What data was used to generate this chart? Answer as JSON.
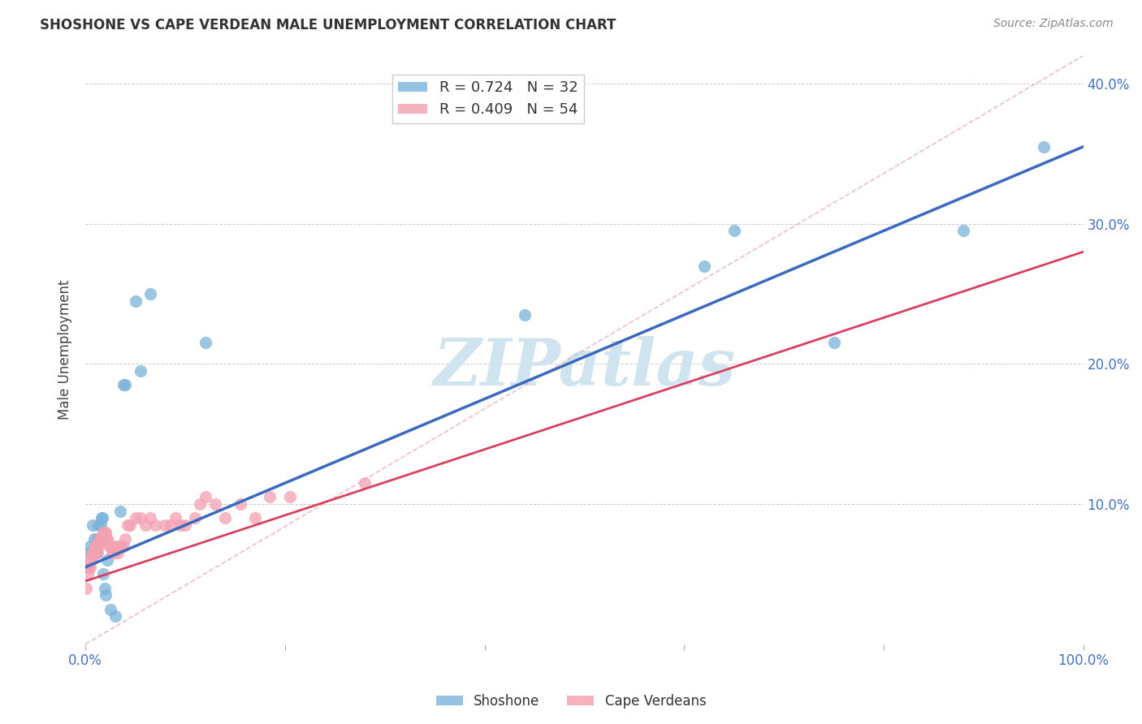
{
  "title": "SHOSHONE VS CAPE VERDEAN MALE UNEMPLOYMENT CORRELATION CHART",
  "source": "Source: ZipAtlas.com",
  "ylabel": "Male Unemployment",
  "xlabel": "",
  "xlim": [
    0,
    1.0
  ],
  "ylim": [
    0,
    0.42
  ],
  "x_ticks": [
    0.0,
    0.2,
    0.4,
    0.6,
    0.8,
    1.0
  ],
  "x_tick_labels": [
    "0.0%",
    "",
    "",
    "",
    "",
    "100.0%"
  ],
  "y_ticks": [
    0.0,
    0.1,
    0.2,
    0.3,
    0.4
  ],
  "y_tick_labels": [
    "",
    "10.0%",
    "20.0%",
    "30.0%",
    "40.0%"
  ],
  "shoshone_color": "#7ab3d9",
  "cape_verdean_color": "#f4a0b0",
  "shoshone_R": "0.724",
  "shoshone_N": "32",
  "cape_verdean_R": "0.409",
  "cape_verdean_N": "54",
  "trend_line_color_shoshone": "#3a6abf",
  "trend_line_color_cape_verdean": "#d94060",
  "diagonal_color": "#cccccc",
  "background_color": "#ffffff",
  "watermark_text": "ZIPatlas",
  "watermark_color": "#d0e4f0",
  "shoshone_x": [
    0.002,
    0.004,
    0.005,
    0.007,
    0.008,
    0.009,
    0.01,
    0.011,
    0.012,
    0.013,
    0.015,
    0.016,
    0.017,
    0.018,
    0.019,
    0.02,
    0.022,
    0.025,
    0.03,
    0.035,
    0.038,
    0.04,
    0.05,
    0.055,
    0.065,
    0.12,
    0.44,
    0.62,
    0.65,
    0.75,
    0.88,
    0.96
  ],
  "shoshone_y": [
    0.055,
    0.065,
    0.07,
    0.085,
    0.065,
    0.075,
    0.065,
    0.065,
    0.075,
    0.085,
    0.085,
    0.09,
    0.09,
    0.05,
    0.04,
    0.035,
    0.06,
    0.025,
    0.02,
    0.095,
    0.185,
    0.185,
    0.245,
    0.195,
    0.25,
    0.215,
    0.235,
    0.27,
    0.295,
    0.215,
    0.295,
    0.355
  ],
  "cape_verdean_x": [
    0.001,
    0.002,
    0.003,
    0.004,
    0.005,
    0.006,
    0.007,
    0.008,
    0.009,
    0.01,
    0.011,
    0.012,
    0.013,
    0.014,
    0.015,
    0.016,
    0.017,
    0.018,
    0.019,
    0.02,
    0.021,
    0.022,
    0.024,
    0.025,
    0.027,
    0.028,
    0.03,
    0.032,
    0.034,
    0.036,
    0.038,
    0.04,
    0.042,
    0.045,
    0.05,
    0.055,
    0.06,
    0.065,
    0.07,
    0.08,
    0.085,
    0.09,
    0.095,
    0.1,
    0.11,
    0.115,
    0.12,
    0.13,
    0.14,
    0.155,
    0.17,
    0.185,
    0.205,
    0.28
  ],
  "cape_verdean_y": [
    0.04,
    0.05,
    0.055,
    0.06,
    0.055,
    0.06,
    0.065,
    0.065,
    0.065,
    0.07,
    0.07,
    0.065,
    0.07,
    0.075,
    0.075,
    0.075,
    0.075,
    0.08,
    0.08,
    0.08,
    0.075,
    0.075,
    0.07,
    0.07,
    0.065,
    0.065,
    0.07,
    0.065,
    0.07,
    0.07,
    0.07,
    0.075,
    0.085,
    0.085,
    0.09,
    0.09,
    0.085,
    0.09,
    0.085,
    0.085,
    0.085,
    0.09,
    0.085,
    0.085,
    0.09,
    0.1,
    0.105,
    0.1,
    0.09,
    0.1,
    0.09,
    0.105,
    0.105,
    0.115
  ],
  "shoshone_trendline_x0": 0.0,
  "shoshone_trendline_y0": 0.055,
  "shoshone_trendline_x1": 1.0,
  "shoshone_trendline_y1": 0.355,
  "cape_trendline_x0": 0.0,
  "cape_trendline_y0": 0.045,
  "cape_trendline_x1": 1.0,
  "cape_trendline_y1": 0.28
}
